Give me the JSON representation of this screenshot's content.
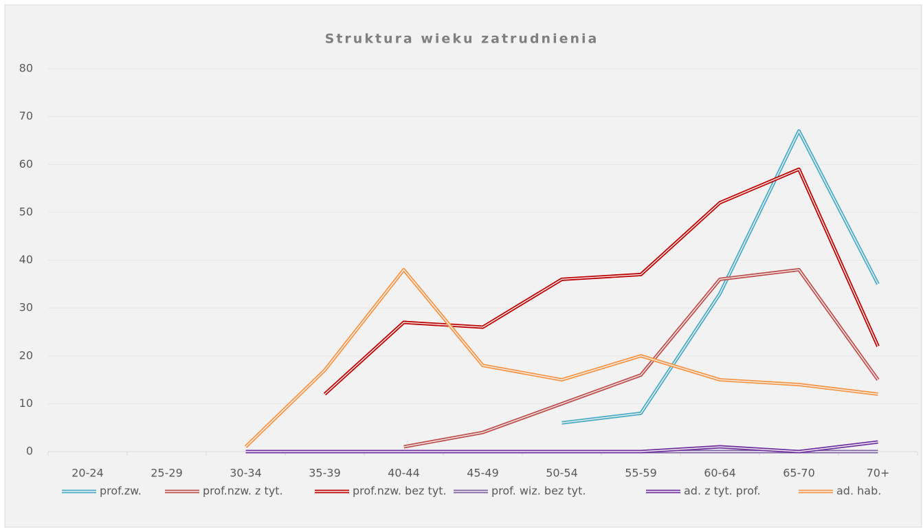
{
  "chart_data": {
    "type": "line",
    "title": "Struktura wieku zatrudnienia",
    "categories": [
      "20-24",
      "25-29",
      "30-34",
      "35-39",
      "40-44",
      "45-49",
      "50-54",
      "55-59",
      "60-64",
      "65-70",
      "70+"
    ],
    "series": [
      {
        "name": "prof.zw.",
        "color": "#4bacc6",
        "values": [
          null,
          null,
          null,
          null,
          null,
          null,
          6,
          8,
          33,
          67,
          35
        ]
      },
      {
        "name": "prof.nzw. z tyt.",
        "color": "#c0504d",
        "values": [
          null,
          null,
          null,
          null,
          1,
          4,
          10,
          16,
          36,
          38,
          15
        ]
      },
      {
        "name": "prof.nzw. bez tyt.",
        "color": "#c00000",
        "values": [
          null,
          null,
          null,
          12,
          27,
          26,
          36,
          37,
          52,
          59,
          22
        ]
      },
      {
        "name": "prof. wiz. bez tyt.",
        "color": "#8064a2",
        "values": [
          null,
          null,
          0,
          0,
          0,
          0,
          0,
          0,
          0,
          0,
          0
        ]
      },
      {
        "name": "ad. z tyt. prof.",
        "color": "#7030a0",
        "values": [
          null,
          null,
          0,
          0,
          0,
          0,
          0,
          0,
          1,
          0,
          2
        ]
      },
      {
        "name": "ad. hab.",
        "color": "#f79646",
        "values": [
          null,
          null,
          1,
          17,
          38,
          18,
          15,
          20,
          15,
          14,
          12
        ]
      }
    ],
    "ylim": [
      0,
      80
    ],
    "yticks": [
      0,
      10,
      20,
      30,
      40,
      50,
      60,
      70,
      80
    ],
    "grid": true,
    "legend": "bottom"
  }
}
